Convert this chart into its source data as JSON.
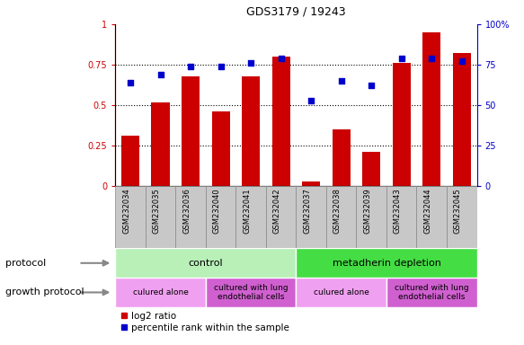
{
  "title": "GDS3179 / 19243",
  "samples": [
    "GSM232034",
    "GSM232035",
    "GSM232036",
    "GSM232040",
    "GSM232041",
    "GSM232042",
    "GSM232037",
    "GSM232038",
    "GSM232039",
    "GSM232043",
    "GSM232044",
    "GSM232045"
  ],
  "log2_ratio": [
    0.31,
    0.52,
    0.68,
    0.46,
    0.68,
    0.8,
    0.03,
    0.35,
    0.21,
    0.76,
    0.95,
    0.82
  ],
  "percentile_rank": [
    64,
    69,
    74,
    74,
    76,
    79,
    53,
    65,
    62,
    79,
    79,
    77
  ],
  "bar_color": "#cc0000",
  "dot_color": "#0000cc",
  "left_axis_color": "#cc0000",
  "right_axis_color": "#0000cc",
  "ylim_left": [
    0,
    1.0
  ],
  "ylim_right": [
    0,
    100
  ],
  "yticks_left": [
    0,
    0.25,
    0.5,
    0.75,
    1.0
  ],
  "ytick_labels_left": [
    "0",
    "0.25",
    "0.5",
    "0.75",
    "1"
  ],
  "yticks_right": [
    0,
    25,
    50,
    75,
    100
  ],
  "ytick_labels_right": [
    "0",
    "25",
    "50",
    "75",
    "100%"
  ],
  "dotted_lines": [
    0.25,
    0.5,
    0.75
  ],
  "protocol_label": "protocol",
  "growth_protocol_label": "growth protocol",
  "protocol_groups": [
    {
      "label": "control",
      "start": 0,
      "end": 5,
      "color": "#b8f0b8"
    },
    {
      "label": "metadherin depletion",
      "start": 6,
      "end": 11,
      "color": "#44dd44"
    }
  ],
  "growth_groups": [
    {
      "label": "culured alone",
      "start": 0,
      "end": 2,
      "color": "#f0a0f0"
    },
    {
      "label": "cultured with lung\nendothelial cells",
      "start": 3,
      "end": 5,
      "color": "#d060d0"
    },
    {
      "label": "culured alone",
      "start": 6,
      "end": 8,
      "color": "#f0a0f0"
    },
    {
      "label": "cultured with lung\nendothelial cells",
      "start": 9,
      "end": 11,
      "color": "#d060d0"
    }
  ],
  "legend_items": [
    {
      "label": "log2 ratio",
      "color": "#cc0000",
      "marker": "s"
    },
    {
      "label": "percentile rank within the sample",
      "color": "#0000cc",
      "marker": "s"
    }
  ],
  "tick_bg_color": "#c8c8c8",
  "tick_edge_color": "#888888"
}
